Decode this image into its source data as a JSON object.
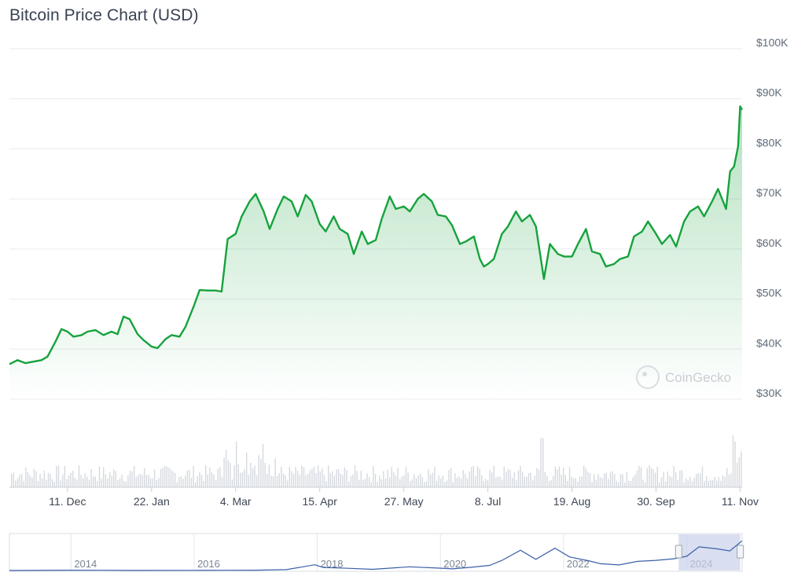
{
  "title": "Bitcoin Price Chart (USD)",
  "watermark": "CoinGecko",
  "colors": {
    "line": "#16a23c",
    "area_top": "#16a23c",
    "grid": "#e8ebef",
    "volume": "#d5d9df",
    "navigator_line": "#3b5fa8",
    "navigator_mask": "#c9d2ea"
  },
  "chart_data": {
    "type": "line",
    "title": "Bitcoin Price Chart (USD)",
    "y_axis": {
      "min": 30000,
      "max": 100000,
      "ticks": [
        "$30K",
        "$40K",
        "$50K",
        "$60K",
        "$70K",
        "$80K",
        "$90K",
        "$100K"
      ],
      "tick_values": [
        30000,
        40000,
        50000,
        60000,
        70000,
        80000,
        90000,
        100000
      ],
      "position": "right",
      "grid": true
    },
    "x_axis": {
      "start": "2023-11-12",
      "end": "2024-11-12",
      "ticks": [
        "11. Dec",
        "22. Jan",
        "4. Mar",
        "15. Apr",
        "27. May",
        "8. Jul",
        "19. Aug",
        "30. Sep",
        "11. Nov"
      ],
      "tick_dates": [
        "2023-12-11",
        "2024-01-22",
        "2024-03-04",
        "2024-04-15",
        "2024-05-27",
        "2024-07-08",
        "2024-08-19",
        "2024-09-30",
        "2024-11-11"
      ]
    },
    "series": [
      {
        "points": [
          [
            "2023-11-12",
            37000
          ],
          [
            "2023-11-16",
            37800
          ],
          [
            "2023-11-20",
            37200
          ],
          [
            "2023-11-24",
            37500
          ],
          [
            "2023-11-28",
            37800
          ],
          [
            "2023-12-01",
            38500
          ],
          [
            "2023-12-05",
            41500
          ],
          [
            "2023-12-08",
            44000
          ],
          [
            "2023-12-11",
            43500
          ],
          [
            "2023-12-14",
            42500
          ],
          [
            "2023-12-18",
            42800
          ],
          [
            "2023-12-21",
            43500
          ],
          [
            "2023-12-25",
            43800
          ],
          [
            "2023-12-29",
            42800
          ],
          [
            "2024-01-02",
            43500
          ],
          [
            "2024-01-05",
            43000
          ],
          [
            "2024-01-08",
            46500
          ],
          [
            "2024-01-11",
            46000
          ],
          [
            "2024-01-15",
            43000
          ],
          [
            "2024-01-18",
            41800
          ],
          [
            "2024-01-22",
            40500
          ],
          [
            "2024-01-25",
            40200
          ],
          [
            "2024-01-29",
            42000
          ],
          [
            "2024-02-01",
            42800
          ],
          [
            "2024-02-05",
            42500
          ],
          [
            "2024-02-08",
            44500
          ],
          [
            "2024-02-12",
            48500
          ],
          [
            "2024-02-15",
            51800
          ],
          [
            "2024-02-19",
            51700
          ],
          [
            "2024-02-23",
            51700
          ],
          [
            "2024-02-26",
            51500
          ],
          [
            "2024-02-29",
            62000
          ],
          [
            "2024-03-04",
            63000
          ],
          [
            "2024-03-07",
            66500
          ],
          [
            "2024-03-11",
            69500
          ],
          [
            "2024-03-14",
            71000
          ],
          [
            "2024-03-18",
            67500
          ],
          [
            "2024-03-21",
            64000
          ],
          [
            "2024-03-25",
            68000
          ],
          [
            "2024-03-28",
            70500
          ],
          [
            "2024-04-01",
            69500
          ],
          [
            "2024-04-04",
            66500
          ],
          [
            "2024-04-08",
            70800
          ],
          [
            "2024-04-11",
            69500
          ],
          [
            "2024-04-15",
            65000
          ],
          [
            "2024-04-18",
            63500
          ],
          [
            "2024-04-22",
            66500
          ],
          [
            "2024-04-25",
            64000
          ],
          [
            "2024-04-29",
            63000
          ],
          [
            "2024-05-02",
            59000
          ],
          [
            "2024-05-06",
            63500
          ],
          [
            "2024-05-09",
            61000
          ],
          [
            "2024-05-13",
            61800
          ],
          [
            "2024-05-16",
            66000
          ],
          [
            "2024-05-20",
            70500
          ],
          [
            "2024-05-23",
            68000
          ],
          [
            "2024-05-27",
            68500
          ],
          [
            "2024-05-30",
            67500
          ],
          [
            "2024-06-03",
            70000
          ],
          [
            "2024-06-06",
            71000
          ],
          [
            "2024-06-10",
            69500
          ],
          [
            "2024-06-13",
            66800
          ],
          [
            "2024-06-17",
            66500
          ],
          [
            "2024-06-20",
            64800
          ],
          [
            "2024-06-24",
            61000
          ],
          [
            "2024-06-27",
            61500
          ],
          [
            "2024-07-01",
            62500
          ],
          [
            "2024-07-04",
            58000
          ],
          [
            "2024-07-06",
            56500
          ],
          [
            "2024-07-08",
            57000
          ],
          [
            "2024-07-11",
            58000
          ],
          [
            "2024-07-15",
            63000
          ],
          [
            "2024-07-18",
            64500
          ],
          [
            "2024-07-22",
            67500
          ],
          [
            "2024-07-25",
            65500
          ],
          [
            "2024-07-29",
            66800
          ],
          [
            "2024-08-01",
            64500
          ],
          [
            "2024-08-05",
            54000
          ],
          [
            "2024-08-08",
            61000
          ],
          [
            "2024-08-12",
            59000
          ],
          [
            "2024-08-15",
            58500
          ],
          [
            "2024-08-19",
            58500
          ],
          [
            "2024-08-22",
            61000
          ],
          [
            "2024-08-26",
            64000
          ],
          [
            "2024-08-29",
            59500
          ],
          [
            "2024-09-02",
            59000
          ],
          [
            "2024-09-05",
            56500
          ],
          [
            "2024-09-09",
            57000
          ],
          [
            "2024-09-12",
            58000
          ],
          [
            "2024-09-16",
            58500
          ],
          [
            "2024-09-19",
            62500
          ],
          [
            "2024-09-23",
            63500
          ],
          [
            "2024-09-26",
            65500
          ],
          [
            "2024-09-30",
            63000
          ],
          [
            "2024-10-03",
            61000
          ],
          [
            "2024-10-07",
            62800
          ],
          [
            "2024-10-10",
            60500
          ],
          [
            "2024-10-14",
            65500
          ],
          [
            "2024-10-17",
            67500
          ],
          [
            "2024-10-21",
            68500
          ],
          [
            "2024-10-24",
            66500
          ],
          [
            "2024-10-28",
            69500
          ],
          [
            "2024-10-31",
            72000
          ],
          [
            "2024-11-04",
            68000
          ],
          [
            "2024-11-06",
            75500
          ],
          [
            "2024-11-08",
            76500
          ],
          [
            "2024-11-10",
            80500
          ],
          [
            "2024-11-11",
            88500
          ],
          [
            "2024-11-12",
            87800
          ]
        ]
      }
    ],
    "volume_panel": true,
    "navigator": {
      "ticks": [
        "2014",
        "2016",
        "2018",
        "2020",
        "2022",
        "2024"
      ],
      "range_years": [
        2013,
        2024.9
      ],
      "selected_years": [
        2023.87,
        2024.87
      ],
      "points": [
        [
          2013.0,
          100
        ],
        [
          2013.9,
          900
        ],
        [
          2014.5,
          600
        ],
        [
          2015.0,
          300
        ],
        [
          2016.0,
          400
        ],
        [
          2016.5,
          650
        ],
        [
          2017.0,
          1000
        ],
        [
          2017.5,
          2500
        ],
        [
          2017.96,
          17000
        ],
        [
          2018.1,
          9000
        ],
        [
          2018.5,
          6500
        ],
        [
          2018.9,
          3500
        ],
        [
          2019.5,
          11000
        ],
        [
          2019.95,
          7200
        ],
        [
          2020.2,
          5000
        ],
        [
          2020.5,
          9500
        ],
        [
          2020.8,
          15000
        ],
        [
          2021.0,
          30000
        ],
        [
          2021.3,
          60000
        ],
        [
          2021.55,
          33000
        ],
        [
          2021.86,
          66000
        ],
        [
          2022.1,
          40000
        ],
        [
          2022.4,
          29000
        ],
        [
          2022.6,
          20000
        ],
        [
          2022.9,
          16500
        ],
        [
          2023.2,
          27000
        ],
        [
          2023.5,
          30000
        ],
        [
          2023.8,
          35000
        ],
        [
          2024.0,
          42000
        ],
        [
          2024.2,
          70000
        ],
        [
          2024.5,
          64000
        ],
        [
          2024.7,
          58000
        ],
        [
          2024.9,
          88000
        ]
      ]
    }
  }
}
